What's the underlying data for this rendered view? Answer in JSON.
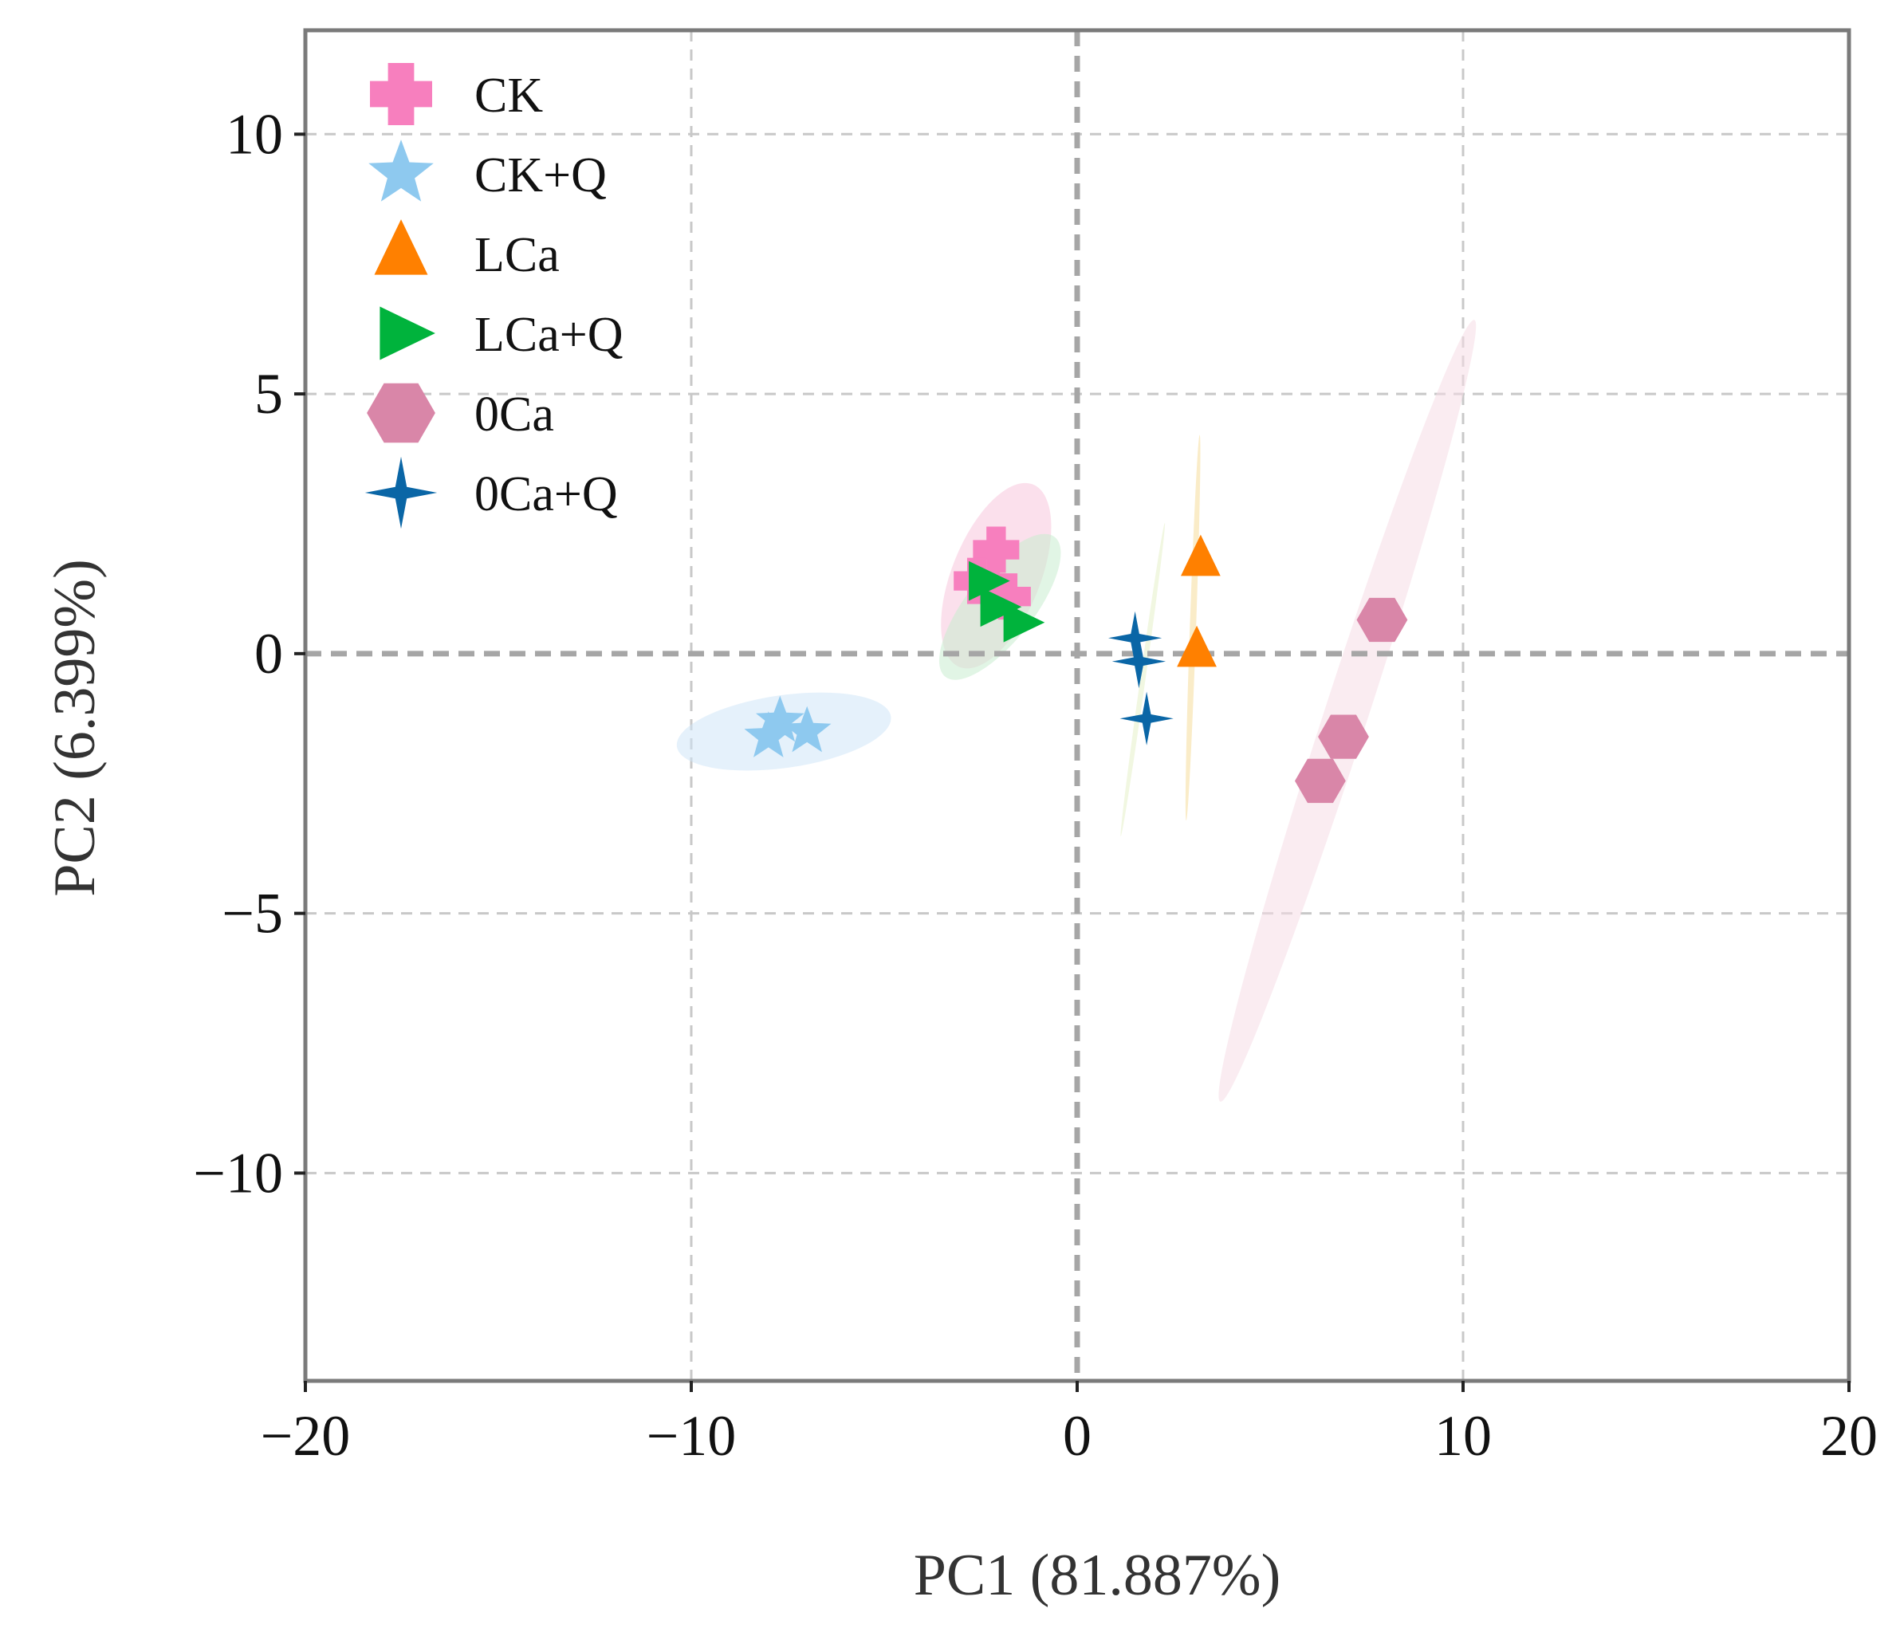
{
  "chart_data": {
    "type": "scatter",
    "title": "",
    "xlabel": "PC1 (81.887%)",
    "ylabel": "PC2 (6.399%)",
    "xlim": [
      -20,
      20
    ],
    "ylim": [
      -14,
      12
    ],
    "xticks": [
      -20,
      -10,
      0,
      10,
      20
    ],
    "xtick_labels": [
      "−20",
      "−10",
      "0",
      "10",
      "20"
    ],
    "yticks": [
      -10,
      -5,
      0,
      5,
      10
    ],
    "ytick_labels": [
      "−10",
      "−5",
      "0",
      "5",
      "10"
    ],
    "grid": true,
    "legend_position": "top-left",
    "series": [
      {
        "name": "CK",
        "marker": "plus",
        "color": "#f77fbe",
        "points": [
          [
            -2.1,
            2.0
          ],
          [
            -2.6,
            1.4
          ],
          [
            -1.8,
            1.1
          ]
        ],
        "ellipse": {
          "cx": -2.1,
          "cy": 1.5,
          "a": 2.55,
          "b": 0.85,
          "angle": 68,
          "color": "#f7c6dd"
        }
      },
      {
        "name": "CK+Q",
        "marker": "star",
        "color": "#8ec9ef",
        "points": [
          [
            -7.7,
            -1.3
          ],
          [
            -7.0,
            -1.5
          ],
          [
            -8.0,
            -1.6
          ]
        ],
        "ellipse": {
          "cx": -7.6,
          "cy": -1.5,
          "a": 2.8,
          "b": 0.7,
          "angle": 8,
          "color": "#cfe6f8"
        }
      },
      {
        "name": "LCa",
        "marker": "triangle-up",
        "color": "#ff8000",
        "points": [
          [
            3.2,
            1.8
          ],
          [
            3.1,
            0.05
          ]
        ],
        "ellipse": {
          "cx": 3.0,
          "cy": 0.5,
          "a": 5.0,
          "b": 0.06,
          "angle": 88,
          "color": "#f5dd9a"
        }
      },
      {
        "name": "LCa+Q",
        "marker": "triangle-right",
        "color": "#00b33c",
        "points": [
          [
            -2.4,
            1.4
          ],
          [
            -2.1,
            0.9
          ],
          [
            -1.5,
            0.6
          ]
        ],
        "ellipse": {
          "cx": -2.0,
          "cy": 0.9,
          "a": 2.3,
          "b": 0.65,
          "angle": 52,
          "color": "#c9ecd0"
        }
      },
      {
        "name": "0Ca",
        "marker": "hexagon",
        "color": "#d986a8",
        "points": [
          [
            7.9,
            0.65
          ],
          [
            6.9,
            -1.6
          ],
          [
            6.3,
            -2.45
          ]
        ],
        "ellipse": {
          "cx": 7.0,
          "cy": -1.1,
          "a": 10.65,
          "b": 0.42,
          "angle": 72,
          "color": "#f6dde6"
        }
      },
      {
        "name": "0Ca+Q",
        "marker": "four-point-star",
        "color": "#0a66a6",
        "points": [
          [
            1.5,
            0.3
          ],
          [
            1.6,
            -0.15
          ],
          [
            1.8,
            -1.25
          ]
        ],
        "ellipse": {
          "cx": 1.7,
          "cy": -0.5,
          "a": 4.1,
          "b": 0.05,
          "angle": 82,
          "color": "#e6f0c8"
        }
      }
    ]
  }
}
